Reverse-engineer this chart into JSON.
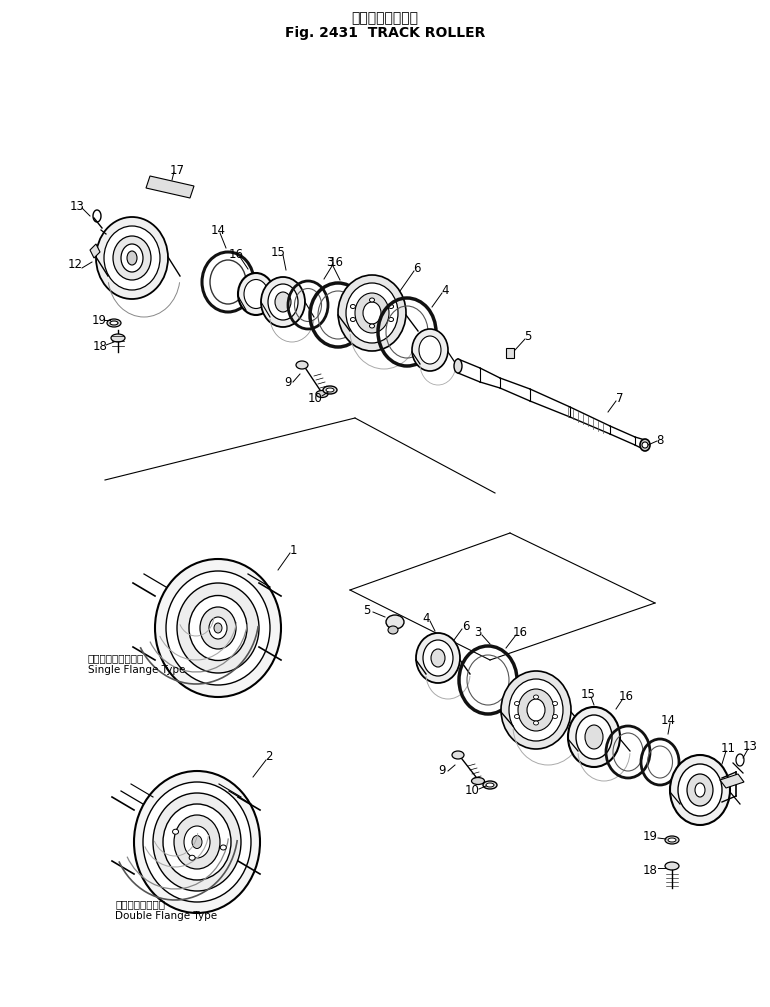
{
  "title_japanese": "トラック　ローラ",
  "title_english": "Fig. 2431  TRACK ROLLER",
  "background_color": "#ffffff",
  "line_color": "#000000",
  "text_color": "#000000",
  "fig_width": 7.7,
  "fig_height": 10.07,
  "single_flange_jp": "シングルフランジ型",
  "single_flange_en": "Single Flange Type",
  "double_flange_jp": "ダブルフランジ型",
  "double_flange_en": "Double Flange Type"
}
